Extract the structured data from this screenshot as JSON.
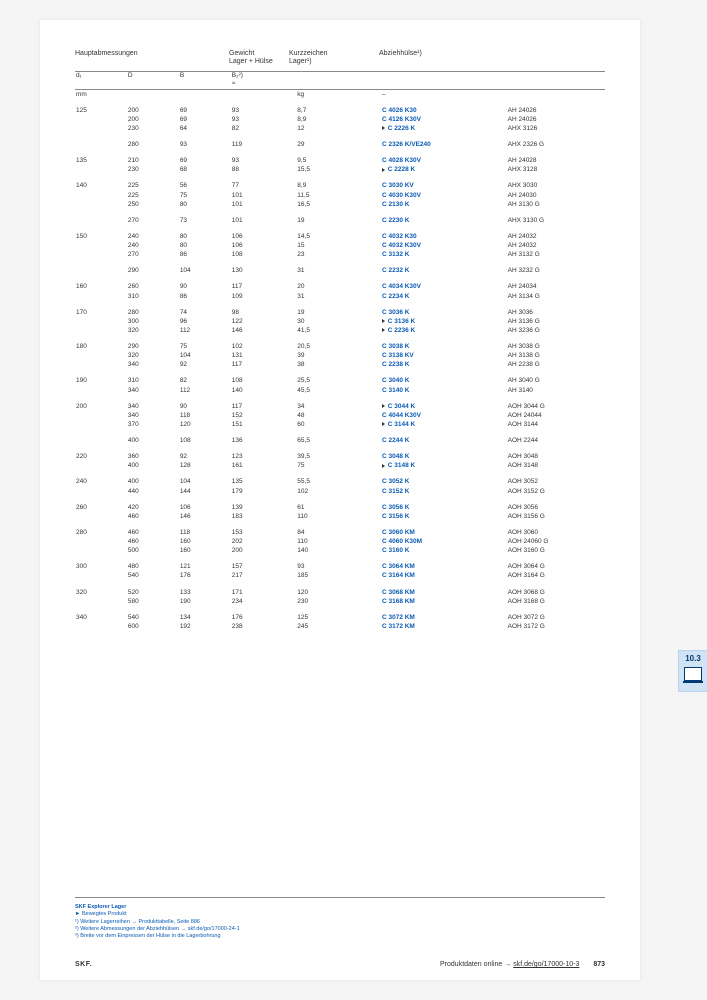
{
  "header": {
    "col1": "Hauptabmessungen",
    "col5_line1": "Gewicht",
    "col5_line2": "Lager + Hülse",
    "col6_line1": "Kurzzeichen",
    "col6_line2": "Lager¹)",
    "col7": "Abziehhülse¹)"
  },
  "sub": {
    "d1": "d₁",
    "D": "D",
    "B": "B",
    "B2": "B₂²)",
    "dash": "≈"
  },
  "units": {
    "mm": "mm",
    "kg": "kg",
    "dash": "–"
  },
  "tab": {
    "num": "10.3"
  },
  "footnotes": {
    "title": "SKF Explorer Lager",
    "l1": "►  Bewegtes Produkt",
    "l2": "¹) Weitere Lagerreihen → Produkttabelle, Seite 886",
    "l3": "²) Weitere Abmessungen der Abziehhülsen → skf.de/go/17000-24-1",
    "l4": "³) Breite vor dem Einpressen der Hülse in die Lagerbohrung"
  },
  "footer": {
    "brand": "SKF.",
    "right_text": "Produktdaten online → ",
    "right_link": "skf.de/go/17000-10-3",
    "page": "873"
  },
  "groups": [
    {
      "d": "125",
      "rows": [
        [
          "",
          "200",
          "69",
          "93",
          "8,7",
          "C 4026 K30",
          "AH 24026"
        ],
        [
          "",
          "200",
          "69",
          "93",
          "8,9",
          "C 4126 K30V",
          "AH 24026"
        ],
        [
          "",
          "230",
          "64",
          "82",
          "12",
          "C 2226 K",
          "AHX 3126",
          true
        ]
      ]
    },
    {
      "d": "",
      "rows": [
        [
          "",
          "280",
          "93",
          "119",
          "29",
          "C 2326 K/VE240",
          "AHX 2326 G"
        ]
      ]
    },
    {
      "d": "135",
      "rows": [
        [
          "",
          "210",
          "69",
          "93",
          "9,5",
          "C 4028 K30V",
          "AH 24028"
        ],
        [
          "",
          "230",
          "68",
          "88",
          "15,5",
          "C 2228 K",
          "AHX 3128",
          true
        ]
      ]
    },
    {
      "d": "140",
      "rows": [
        [
          "",
          "225",
          "56",
          "77",
          "8,9",
          "C 3030 KV",
          "AHX 3030"
        ],
        [
          "",
          "225",
          "75",
          "101",
          "11,5",
          "C 4030 K30V",
          "AH 24030"
        ],
        [
          "",
          "250",
          "80",
          "101",
          "16,5",
          "C 2130 K",
          "AH 3130 G"
        ]
      ]
    },
    {
      "d": "",
      "rows": [
        [
          "",
          "270",
          "73",
          "101",
          "19",
          "C 2230 K",
          "AHX 3130 G"
        ]
      ]
    },
    {
      "d": "150",
      "rows": [
        [
          "",
          "240",
          "80",
          "106",
          "14,5",
          "C 4032 K30",
          "AH 24032"
        ],
        [
          "",
          "240",
          "80",
          "106",
          "15",
          "C 4032 K30V",
          "AH 24032"
        ],
        [
          "",
          "270",
          "86",
          "108",
          "23",
          "C 3132 K",
          "AH 3132 G"
        ]
      ]
    },
    {
      "d": "",
      "rows": [
        [
          "",
          "290",
          "104",
          "130",
          "31",
          "C 2232 K",
          "AH 3232 G"
        ]
      ]
    },
    {
      "d": "160",
      "rows": [
        [
          "",
          "260",
          "90",
          "117",
          "20",
          "C 4034 K30V",
          "AH 24034"
        ],
        [
          "",
          "310",
          "86",
          "109",
          "31",
          "C 2234 K",
          "AH 3134 G"
        ]
      ]
    },
    {
      "d": "170",
      "rows": [
        [
          "",
          "280",
          "74",
          "98",
          "19",
          "C 3036 K",
          "AH 3036"
        ],
        [
          "",
          "300",
          "96",
          "122",
          "30",
          "C 3136 K",
          "AH 3136 G",
          true
        ],
        [
          "",
          "320",
          "112",
          "146",
          "41,5",
          "C 2236 K",
          "AH 3236 G",
          true
        ]
      ]
    },
    {
      "d": "180",
      "rows": [
        [
          "",
          "290",
          "75",
          "102",
          "20,5",
          "C 3038 K",
          "AH 3038 G"
        ],
        [
          "",
          "320",
          "104",
          "131",
          "39",
          "C 3138 KV",
          "AH 3138 G"
        ],
        [
          "",
          "340",
          "92",
          "117",
          "38",
          "C 2238 K",
          "AH 2238 G"
        ]
      ]
    },
    {
      "d": "190",
      "rows": [
        [
          "",
          "310",
          "82",
          "108",
          "25,5",
          "C 3040 K",
          "AH 3040 G"
        ],
        [
          "",
          "340",
          "112",
          "140",
          "45,5",
          "C 3140 K",
          "AH 3140"
        ]
      ]
    },
    {
      "d": "200",
      "rows": [
        [
          "",
          "340",
          "90",
          "117",
          "34",
          "C 3044 K",
          "AOH 3044 G",
          true
        ],
        [
          "",
          "340",
          "118",
          "152",
          "48",
          "C 4044 K30V",
          "AOH 24044"
        ],
        [
          "",
          "370",
          "120",
          "151",
          "60",
          "C 3144 K",
          "AOH 3144",
          true
        ]
      ]
    },
    {
      "d": "",
      "rows": [
        [
          "",
          "400",
          "108",
          "136",
          "65,5",
          "C 2244 K",
          "AOH 2244"
        ]
      ]
    },
    {
      "d": "220",
      "rows": [
        [
          "",
          "360",
          "92",
          "123",
          "39,5",
          "C 3048 K",
          "AOH 3048"
        ],
        [
          "",
          "400",
          "128",
          "161",
          "75",
          "C 3148 K",
          "AOH 3148",
          true
        ]
      ]
    },
    {
      "d": "240",
      "rows": [
        [
          "",
          "400",
          "104",
          "135",
          "55,5",
          "C 3052 K",
          "AOH 3052"
        ],
        [
          "",
          "440",
          "144",
          "179",
          "102",
          "C 3152 K",
          "AOH 3152 G"
        ]
      ]
    },
    {
      "d": "260",
      "rows": [
        [
          "",
          "420",
          "106",
          "139",
          "61",
          "C 3056 K",
          "AOH 3056"
        ],
        [
          "",
          "460",
          "146",
          "183",
          "110",
          "C 3156 K",
          "AOH 3156 G"
        ]
      ]
    },
    {
      "d": "280",
      "rows": [
        [
          "",
          "460",
          "118",
          "153",
          "84",
          "C 3060 KM",
          "AOH 3060"
        ],
        [
          "",
          "460",
          "160",
          "202",
          "110",
          "C 4060 K30M",
          "AOH 24060 G"
        ],
        [
          "",
          "500",
          "160",
          "200",
          "140",
          "C 3160 K",
          "AOH 3160 G"
        ]
      ]
    },
    {
      "d": "300",
      "rows": [
        [
          "",
          "480",
          "121",
          "157",
          "93",
          "C 3064 KM",
          "AOH 3064 G"
        ],
        [
          "",
          "540",
          "176",
          "217",
          "185",
          "C 3164 KM",
          "AOH 3164 G"
        ]
      ]
    },
    {
      "d": "320",
      "rows": [
        [
          "",
          "520",
          "133",
          "171",
          "120",
          "C 3068 KM",
          "AOH 3068 G"
        ],
        [
          "",
          "580",
          "190",
          "234",
          "230",
          "C 3168 KM",
          "AOH 3168 G"
        ]
      ]
    },
    {
      "d": "340",
      "rows": [
        [
          "",
          "540",
          "134",
          "176",
          "125",
          "C 3072 KM",
          "AOH 3072 G"
        ],
        [
          "",
          "600",
          "192",
          "238",
          "245",
          "C 3172 KM",
          "AOH 3172 G"
        ]
      ]
    }
  ]
}
